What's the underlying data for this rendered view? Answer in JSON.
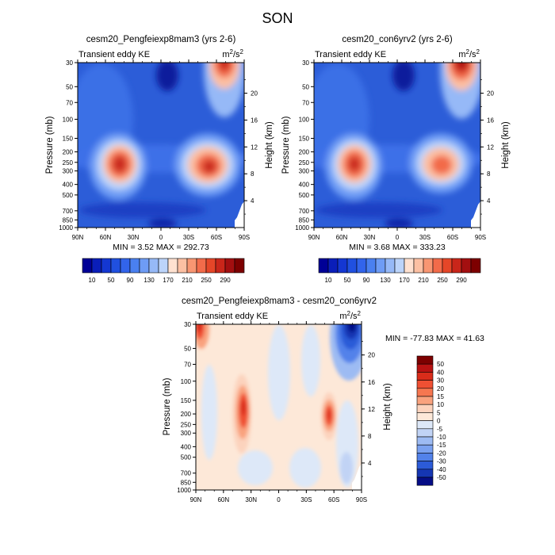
{
  "figure": {
    "title": "SON"
  },
  "chart_data": [
    {
      "type": "heatmap",
      "title": "cesm20_Pengfeiexp8mam3 (yrs 2-6)",
      "variable": "Transient eddy KE",
      "units_base": "m",
      "units_exp": "2",
      "units_den_base": "s",
      "units_den_exp": "2",
      "xlabel": "",
      "ylabel": "Pressure (mb)",
      "y2label": "Height (km)",
      "x_ticks": [
        "90N",
        "60N",
        "30N",
        "0",
        "30S",
        "60S",
        "90S"
      ],
      "y_ticks": [
        "30",
        "50",
        "70",
        "100",
        "150",
        "200",
        "250",
        "300",
        "400",
        "500",
        "700",
        "850",
        "1000"
      ],
      "y2_ticks": [
        "20",
        "16",
        "12",
        "8",
        "4"
      ],
      "x_range": [
        90,
        -90
      ],
      "y_range_mb": [
        1000,
        30
      ],
      "log_pressure": true,
      "min": "3.52",
      "max": "292.73",
      "stats_label": "MIN =  3.52  MAX = 292.73",
      "colorbar_labels": [
        "10",
        "50",
        "90",
        "130",
        "170",
        "210",
        "250",
        "290"
      ],
      "features": [
        {
          "lat": 49,
          "p": 270,
          "value": 290
        },
        {
          "lat": -52,
          "p": 300,
          "value": 270
        },
        {
          "lat": -72,
          "p": 30,
          "value": 270
        }
      ]
    },
    {
      "type": "heatmap",
      "title": "cesm20_con6yrv2 (yrs 2-6)",
      "variable": "Transient eddy KE",
      "units_base": "m",
      "units_exp": "2",
      "units_den_base": "s",
      "units_den_exp": "2",
      "xlabel": "",
      "ylabel": "Pressure (mb)",
      "y2label": "Height (km)",
      "x_ticks": [
        "90N",
        "60N",
        "30N",
        "0",
        "30S",
        "60S",
        "90S"
      ],
      "y_ticks": [
        "30",
        "50",
        "70",
        "100",
        "150",
        "200",
        "250",
        "300",
        "400",
        "500",
        "700",
        "850",
        "1000"
      ],
      "y2_ticks": [
        "20",
        "16",
        "12",
        "8",
        "4"
      ],
      "x_range": [
        90,
        -90
      ],
      "y_range_mb": [
        1000,
        30
      ],
      "log_pressure": true,
      "min": "3.68",
      "max": "333.23",
      "stats_label": "MIN =  3.68  MAX = 333.23",
      "colorbar_labels": [
        "10",
        "50",
        "90",
        "130",
        "170",
        "210",
        "250",
        "290"
      ],
      "features": [
        {
          "lat": 50,
          "p": 280,
          "value": 300
        },
        {
          "lat": -48,
          "p": 280,
          "value": 240
        },
        {
          "lat": -72,
          "p": 30,
          "value": 330
        }
      ]
    },
    {
      "type": "heatmap",
      "title": "cesm20_Pengfeiexp8mam3 - cesm20_con6yrv2",
      "variable": "Transient eddy KE",
      "units_base": "m",
      "units_exp": "2",
      "units_den_base": "s",
      "units_den_exp": "2",
      "xlabel": "",
      "ylabel": "Pressure (mb)",
      "y2label": "Height (km)",
      "x_ticks": [
        "90N",
        "60N",
        "30N",
        "0",
        "30S",
        "60S",
        "90S"
      ],
      "y_ticks": [
        "30",
        "50",
        "70",
        "100",
        "150",
        "200",
        "250",
        "300",
        "400",
        "500",
        "700",
        "850",
        "1000"
      ],
      "y2_ticks": [
        "20",
        "16",
        "12",
        "8",
        "4"
      ],
      "x_range": [
        90,
        -90
      ],
      "y_range_mb": [
        1000,
        30
      ],
      "log_pressure": true,
      "min": "-77.83",
      "max": "41.63",
      "stats_label": "MIN = -77.83  MAX =  41.63",
      "colorbar_labels": [
        "50",
        "40",
        "30",
        "20",
        "15",
        "10",
        "5",
        "0",
        "-5",
        "-10",
        "-15",
        "-20",
        "-30",
        "-40",
        "-50"
      ],
      "features": [
        {
          "lat": 42,
          "p": 180,
          "value": 40
        },
        {
          "lat": -52,
          "p": 210,
          "value": 30
        },
        {
          "lat": -72,
          "p": 35,
          "value": -77
        },
        {
          "lat": 88,
          "p": 35,
          "value": 40
        }
      ]
    }
  ],
  "colors": {
    "seq": [
      "#000096",
      "#0a1eb9",
      "#1437d2",
      "#2050e0",
      "#3264eb",
      "#4a80f0",
      "#6e9cf5",
      "#96b9f7",
      "#bcd4fa",
      "#ffe1d0",
      "#fcc0a3",
      "#f89672",
      "#f26b4a",
      "#e54628",
      "#c9261a",
      "#a30f10",
      "#7d0000"
    ],
    "div_cb": [
      "#7d0000",
      "#b91212",
      "#d92c1a",
      "#ef5033",
      "#f67750",
      "#f9a27e",
      "#fcd3bd",
      "#fde8d8",
      "#dde8f8",
      "#c1d3f5",
      "#9dbbf3",
      "#7aa1f0",
      "#5282ea",
      "#2c5bd8",
      "#1536b3",
      "#050d86"
    ]
  }
}
